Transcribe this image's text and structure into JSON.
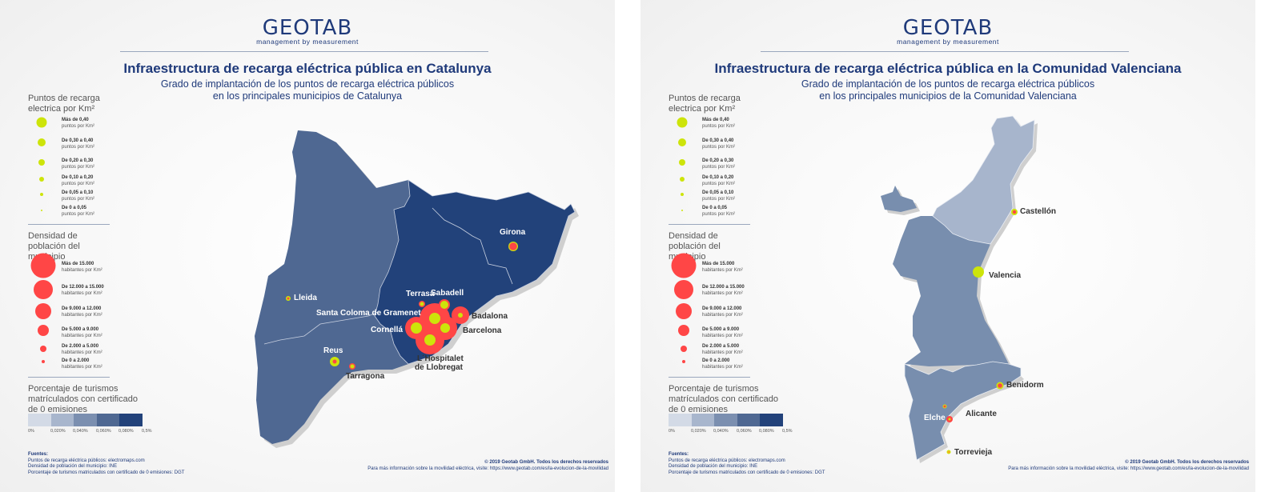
{
  "brand": {
    "logo": "GEOTAB",
    "tagline": "management by measurement"
  },
  "legend": {
    "points_title": "Puntos de recarga electrica por Km²",
    "points": [
      {
        "range": "Más de 0,40",
        "unit": "puntos por Km²"
      },
      {
        "range": "De 0,30 a 0,40",
        "unit": "puntos por Km²"
      },
      {
        "range": "De 0,20 a 0,30",
        "unit": "puntos por Km²"
      },
      {
        "range": "De 0,10 a 0,20",
        "unit": "puntos por Km²"
      },
      {
        "range": "De 0,05 a 0,10",
        "unit": "puntos por Km²"
      },
      {
        "range": "De 0 a 0,05",
        "unit": "puntos por Km²"
      }
    ],
    "density_title": "Densidad de población del municipio",
    "density": [
      {
        "range": "Más de 15.000",
        "unit": "habitantes por Km²"
      },
      {
        "range": "De 12.000 a 15.000",
        "unit": "habitantes por Km²"
      },
      {
        "range": "De 9.000 a 12.000",
        "unit": "habitantes por Km²"
      },
      {
        "range": "De 5.000 a 9.000",
        "unit": "habitantes por Km²"
      },
      {
        "range": "De 2.000 a 5.000",
        "unit": "habitantes por Km²"
      },
      {
        "range": "De 0 a 2.000",
        "unit": "habitantes por Km²"
      }
    ],
    "percent_title": "Porcentaje de turismos matrículados con certificado de 0 emisiones",
    "scale_ticks": [
      "0%",
      "0,020%",
      "0,040%",
      "0,060%",
      "0,080%",
      "0,5%"
    ],
    "scale_colors": [
      "#d3dae6",
      "#a8b6cd",
      "#7b8fb0",
      "#4f6892",
      "#22427a"
    ]
  },
  "colors": {
    "charging_points": "#cde40a",
    "population": "#ff4646",
    "title": "#1f3a7a"
  },
  "footer": {
    "sources_title": "Fuentes:",
    "sources": [
      "Puntos de recarga eléctrica públicos: electromaps.com",
      "Densidad de población del municipio: INE",
      "Porcentaje de turismos matriculados con certificado de 0 emisiones: DGT"
    ],
    "copyright": "© 2019 Geotab GmbH. Todos los derechos reservados",
    "more_info": "Para más información sobre la movilidad eléctrica, visite: https://www.geotab.com/es/la-evolucion-de-la-movilidad"
  },
  "panels": [
    {
      "title": "Infraestructura de recarga eléctrica pública en Catalunya",
      "subtitle_1": "Grado de implantación de los puntos de recarga eléctrica públicos",
      "subtitle_2": "en los principales municipios de Catalunya",
      "cities": [
        "Lleida",
        "Girona",
        "Terrasa",
        "Sabadell",
        "Santa Coloma de Gramenet",
        "Badalona",
        "Barcelona",
        "Cornellá",
        "L´Hospitalet",
        "de Llobregat",
        "Reus",
        "Tarragona"
      ]
    },
    {
      "title": "Infraestructura de recarga eléctrica pública en la Comunidad Valenciana",
      "subtitle_1": "Grado de implantación de los puntos de recarga eléctrica públicos",
      "subtitle_2": "en los principales municipios de la Comunidad Valenciana",
      "cities": [
        "Castellón",
        "Valencia",
        "Benidorm",
        "Alicante",
        "Elche",
        "Torrevieja"
      ]
    }
  ]
}
